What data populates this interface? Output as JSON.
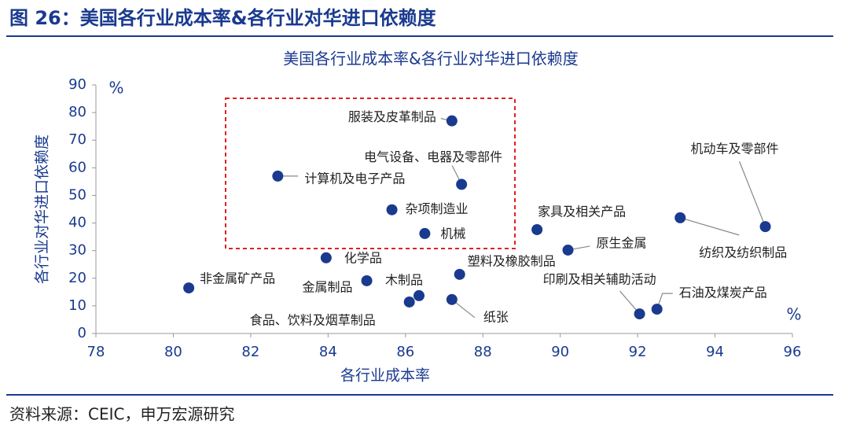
{
  "header": {
    "title": "图 26：美国各行业成本率&各行业对华进口依赖度"
  },
  "chart_data": {
    "type": "scatter",
    "title": "美国各行业成本率&各行业对华进口依赖度",
    "x_label": "各行业成本率",
    "y_label": "各行业对华进口依赖度",
    "x_unit": "%",
    "y_unit": "%",
    "color": "#1a3a8f",
    "labels": [
      "服装及皮革制品",
      "计算机及电子产品",
      "电气设备、电器及零部件",
      "杂项制造业",
      "机械",
      "家具及相关产品",
      "机动车及零部件",
      "纺织及纺织制品",
      "原生金属",
      "化学品",
      "塑料及橡胶制品",
      "非金属矿产品",
      "金属制品",
      "木制品",
      "食品、饮料及烟草制品",
      "纸张",
      "印刷及相关辅助活动",
      "石油及煤炭产品"
    ],
    "x": [
      87.2,
      82.7,
      87.45,
      85.65,
      86.5,
      89.4,
      95.3,
      93.1,
      90.2,
      83.95,
      87.4,
      80.4,
      85.0,
      86.35,
      86.1,
      87.2,
      92.05,
      92.5
    ],
    "y": [
      77,
      57,
      54,
      44.8,
      36.2,
      37.6,
      38.7,
      41.9,
      30.2,
      27.4,
      21.4,
      16.5,
      19.1,
      13.7,
      11.4,
      12.3,
      7.1,
      8.8
    ],
    "xlim": [
      78,
      96
    ],
    "xticks": [
      78,
      80,
      82,
      84,
      86,
      88,
      90,
      92,
      94,
      96
    ],
    "ylim": [
      0,
      90
    ],
    "yticks": [
      0,
      10,
      20,
      30,
      40,
      50,
      60,
      70,
      80,
      90
    ]
  },
  "footer": {
    "source": "资料来源：CEIC，申万宏源研究"
  }
}
